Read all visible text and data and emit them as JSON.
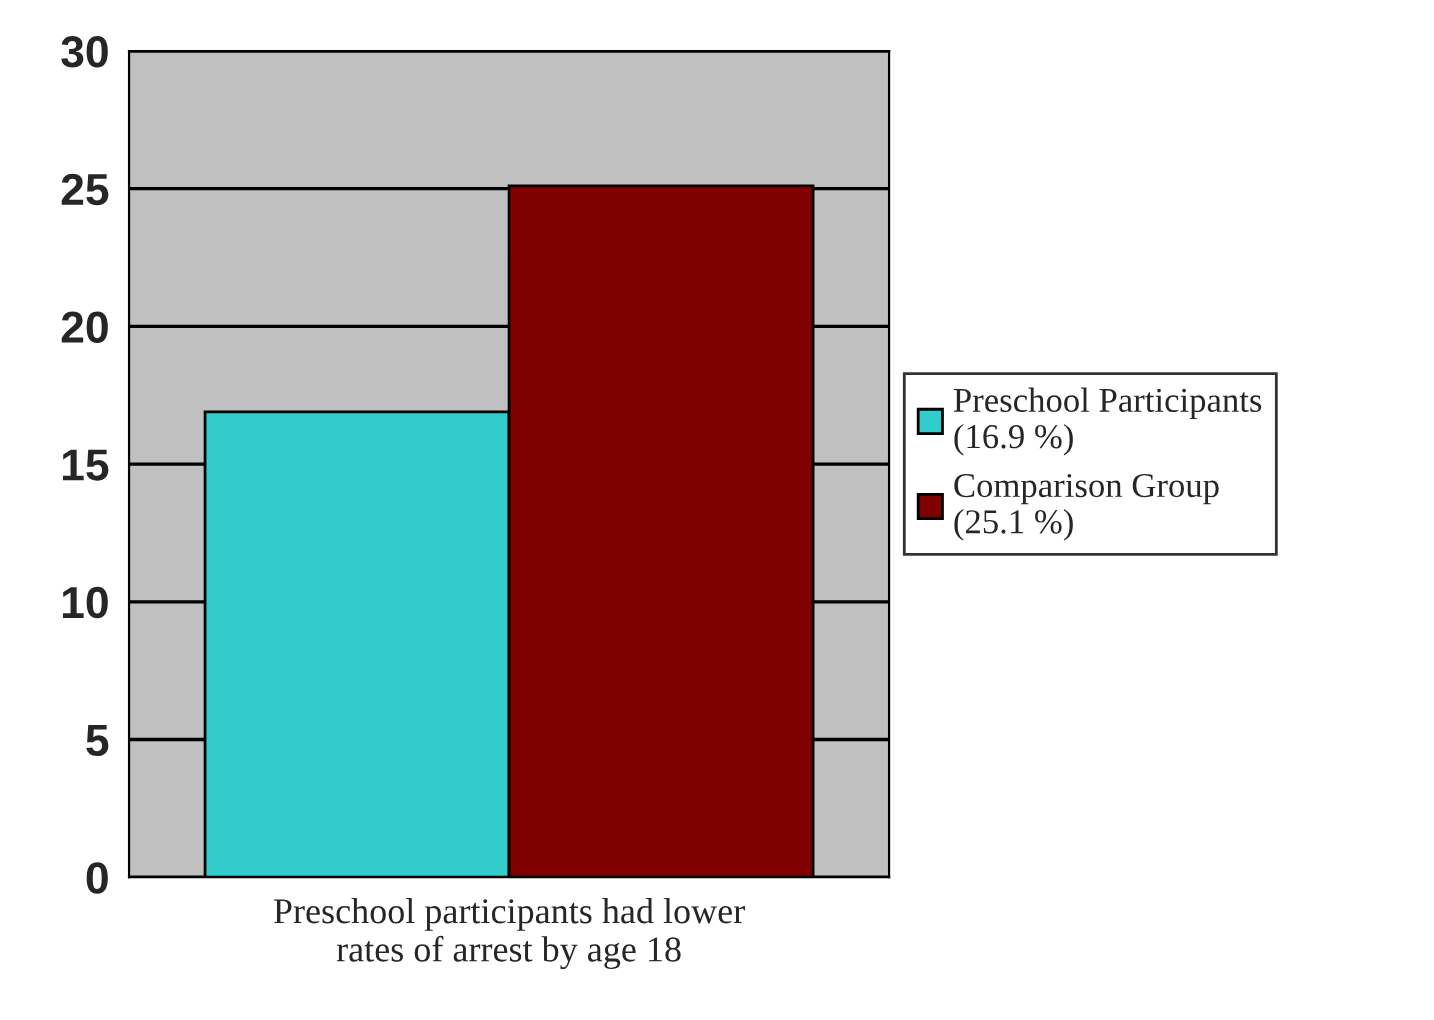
{
  "chart_data": {
    "type": "bar",
    "xlabel": "Preschool participants had lower\nrates of arrest by age 18",
    "categories": [
      null
    ],
    "series": [
      {
        "name": "Preschool Participants\n(16.9 %)",
        "color": "#33cccc",
        "values": [
          16.9
        ]
      },
      {
        "name": "Comparison Group\n(25.1 %)",
        "color": "#800000",
        "values": [
          25.1
        ]
      }
    ],
    "ylim": [
      0,
      30
    ],
    "yticks": [
      0,
      5,
      10,
      15,
      20,
      25,
      30
    ],
    "grid": "y",
    "legend": "right"
  }
}
